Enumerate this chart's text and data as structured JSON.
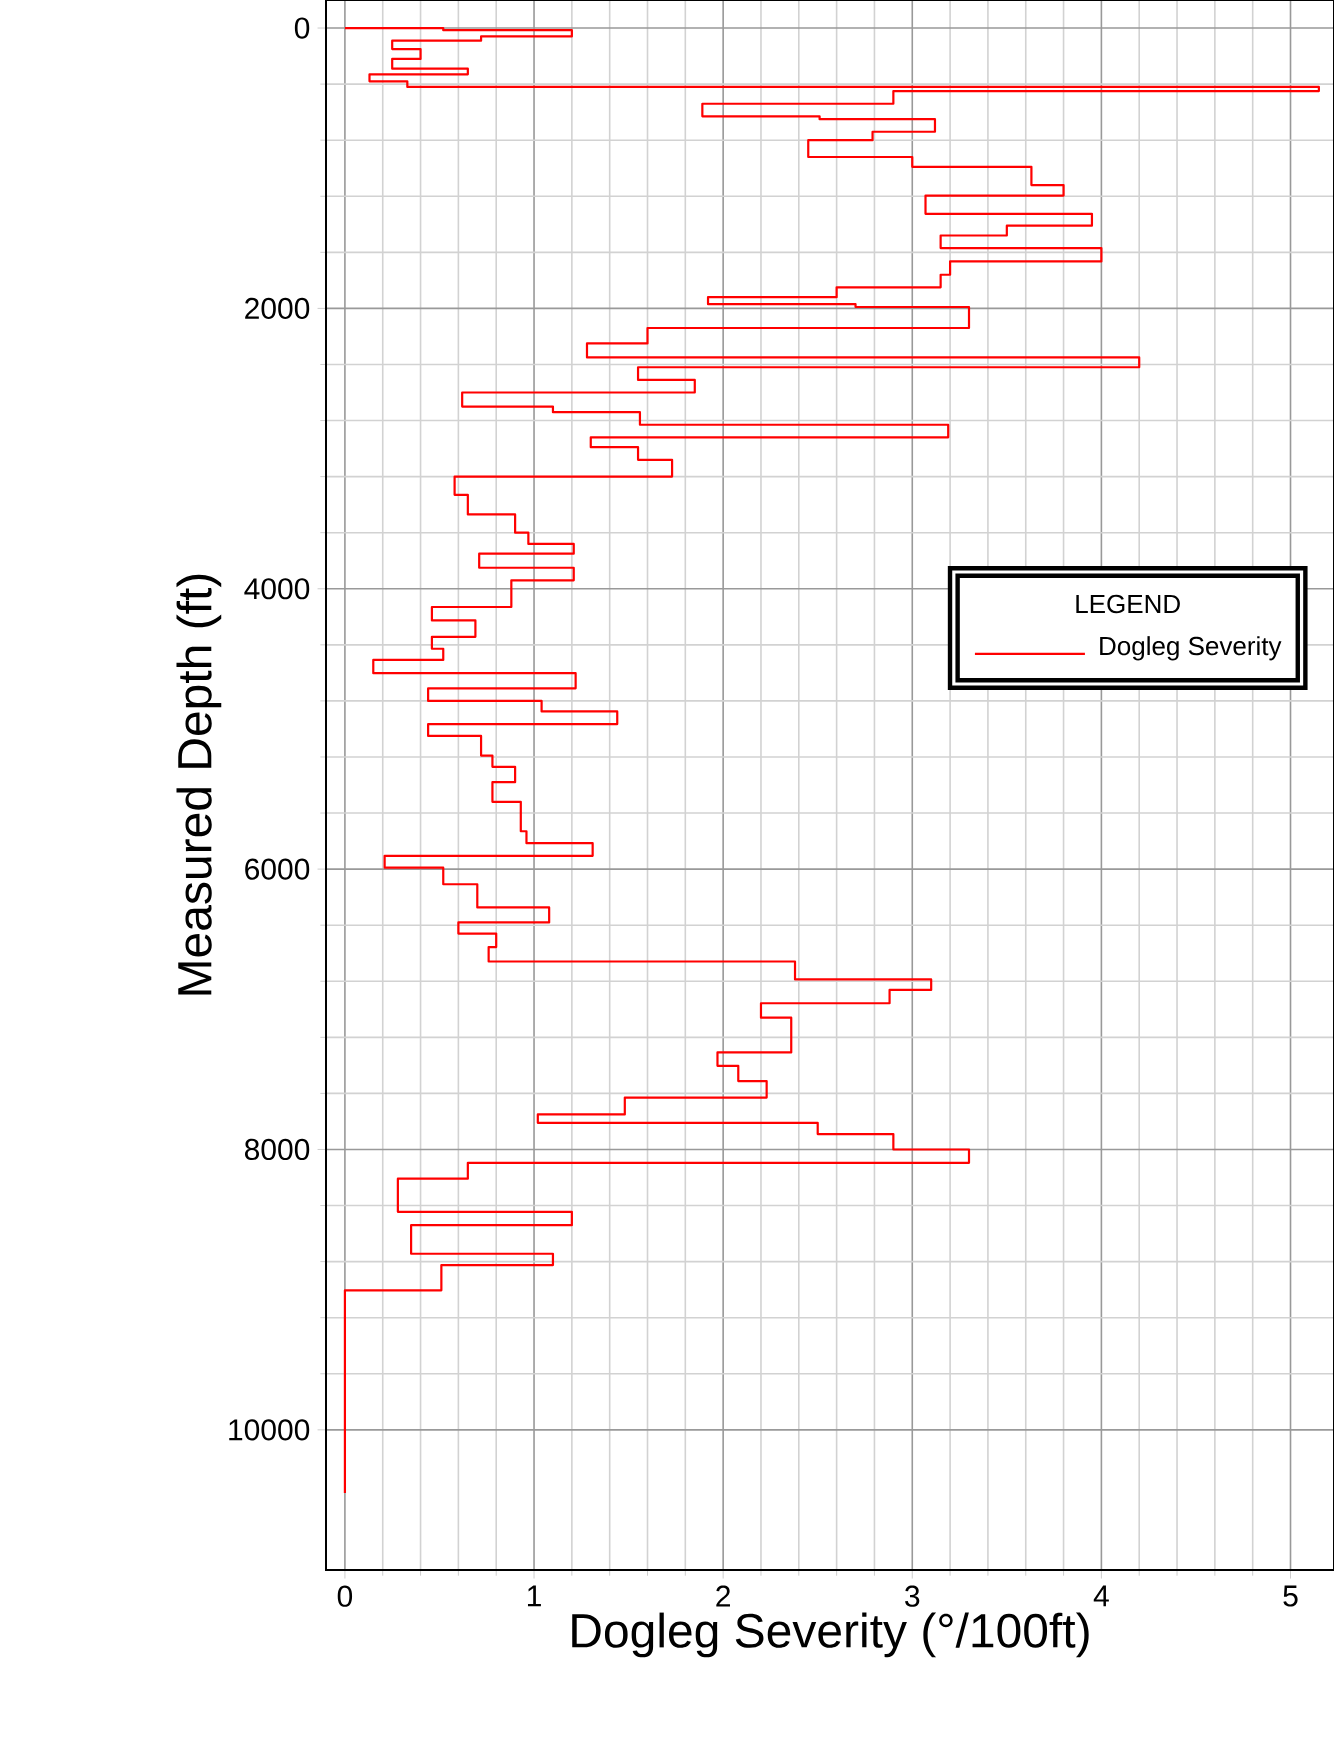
{
  "chart_data": {
    "type": "line",
    "xlabel": "Dogleg Severity (°/100ft)",
    "ylabel": "Measured Depth (ft)",
    "legend_title": "LEGEND",
    "legend": "right",
    "grid": true,
    "xlim": [
      -0.1,
      5.23
    ],
    "ylim": [
      11000,
      -200
    ],
    "xticks": [
      0,
      1,
      2,
      3,
      4,
      5
    ],
    "yticks": [
      0,
      2000,
      4000,
      6000,
      8000,
      10000
    ],
    "series": [
      {
        "name": "Dogleg Severity",
        "color": "#ff0000",
        "x": [
          0,
          0.52,
          0.52,
          1.2,
          1.2,
          0.72,
          0.72,
          0.25,
          0.25,
          0.4,
          0.4,
          0.25,
          0.25,
          0.65,
          0.65,
          0.13,
          0.13,
          0.33,
          0.33,
          5.15,
          5.15,
          2.9,
          2.9,
          1.89,
          1.89,
          2.51,
          2.51,
          3.12,
          3.12,
          2.79,
          2.79,
          2.45,
          2.45,
          3.0,
          3.0,
          3.63,
          3.63,
          3.8,
          3.8,
          3.07,
          3.07,
          3.95,
          3.95,
          3.5,
          3.5,
          3.15,
          3.15,
          4.0,
          4.0,
          3.2,
          3.2,
          3.15,
          3.15,
          2.6,
          2.6,
          1.92,
          1.92,
          2.7,
          2.7,
          3.3,
          3.3,
          1.6,
          1.6,
          1.28,
          1.28,
          4.2,
          4.2,
          1.55,
          1.55,
          1.85,
          1.85,
          0.62,
          0.62,
          1.1,
          1.1,
          1.56,
          1.56,
          3.19,
          3.19,
          1.3,
          1.3,
          1.55,
          1.55,
          1.73,
          1.73,
          0.58,
          0.58,
          0.65,
          0.65,
          0.9,
          0.9,
          0.97,
          0.97,
          1.21,
          1.21,
          0.71,
          0.71,
          1.21,
          1.21,
          0.88,
          0.88,
          0.46,
          0.46,
          0.69,
          0.69,
          0.46,
          0.46,
          0.52,
          0.52,
          0.15,
          0.15,
          1.22,
          1.22,
          0.44,
          0.44,
          1.04,
          1.04,
          1.44,
          1.44,
          0.44,
          0.44,
          0.72,
          0.72,
          0.78,
          0.78,
          0.9,
          0.9,
          0.78,
          0.78,
          0.93,
          0.93,
          0.96,
          0.96,
          1.31,
          1.31,
          0.21,
          0.21,
          0.52,
          0.52,
          0.7,
          0.7,
          1.08,
          1.08,
          0.6,
          0.6,
          0.8,
          0.8,
          0.76,
          0.76,
          2.38,
          2.38,
          3.1,
          3.1,
          2.88,
          2.88,
          2.2,
          2.2,
          2.36,
          2.36,
          1.97,
          1.97,
          2.08,
          2.08,
          2.23,
          2.23,
          1.48,
          1.48,
          1.02,
          1.02,
          2.5,
          2.5,
          2.9,
          2.9,
          3.3,
          3.3,
          0.65,
          0.65,
          0.28,
          0.28,
          1.2,
          1.2,
          0.35,
          0.35,
          1.1,
          1.1,
          0.51,
          0.51,
          0,
          0
        ],
        "values": [
          0,
          0,
          15,
          15,
          60,
          60,
          90,
          90,
          150,
          150,
          220,
          220,
          290,
          290,
          330,
          330,
          380,
          380,
          420,
          420,
          450,
          450,
          540,
          540,
          630,
          630,
          650,
          650,
          740,
          740,
          800,
          800,
          920,
          920,
          990,
          990,
          1120,
          1120,
          1195,
          1195,
          1325,
          1325,
          1410,
          1410,
          1480,
          1480,
          1570,
          1570,
          1665,
          1665,
          1760,
          1760,
          1850,
          1850,
          1920,
          1920,
          1970,
          1970,
          1990,
          1990,
          2140,
          2140,
          2250,
          2250,
          2350,
          2350,
          2420,
          2420,
          2510,
          2510,
          2600,
          2600,
          2700,
          2700,
          2740,
          2740,
          2830,
          2830,
          2920,
          2920,
          2990,
          2990,
          3080,
          3080,
          3200,
          3200,
          3330,
          3330,
          3470,
          3470,
          3600,
          3600,
          3680,
          3680,
          3750,
          3750,
          3850,
          3850,
          3940,
          3940,
          4130,
          4130,
          4226,
          4226,
          4343,
          4343,
          4428,
          4428,
          4508,
          4508,
          4602,
          4602,
          4710,
          4710,
          4800,
          4800,
          4875,
          4875,
          4965,
          4965,
          5050,
          5050,
          5190,
          5190,
          5270,
          5270,
          5380,
          5380,
          5520,
          5520,
          5730,
          5730,
          5815,
          5815,
          5905,
          5905,
          5990,
          5990,
          6108,
          6108,
          6273,
          6273,
          6380,
          6380,
          6460,
          6460,
          6556,
          6556,
          6659,
          6659,
          6787,
          6787,
          6862,
          6862,
          6957,
          6957,
          7060,
          7060,
          7308,
          7308,
          7403,
          7403,
          7512,
          7512,
          7630,
          7630,
          7750,
          7750,
          7810,
          7810,
          7890,
          7890,
          8000,
          8000,
          8095,
          8095,
          8208,
          8208,
          8445,
          8445,
          8540,
          8540,
          8744,
          8744,
          8825,
          8825,
          9005,
          9005,
          10450
        ]
      }
    ]
  }
}
